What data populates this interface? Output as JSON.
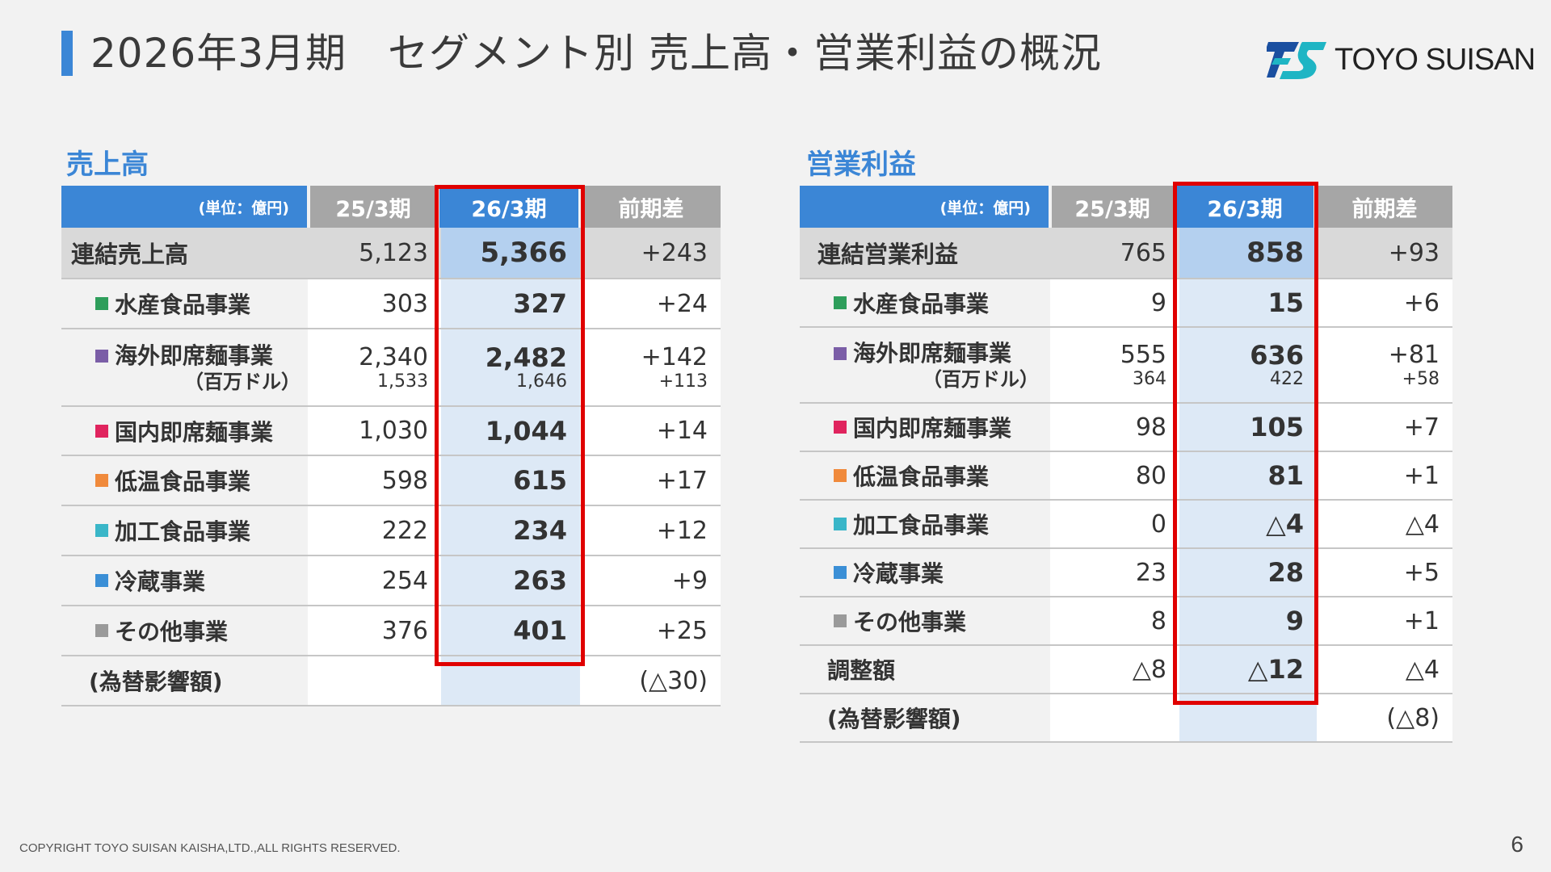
{
  "header": {
    "title": "2026年3月期　セグメント別 売上高・営業利益の概況",
    "logo_text": "TOYO SUISAN"
  },
  "colors": {
    "accent": "#3b86d6",
    "highlight_border": "#e00000",
    "suisan": "#2e9e5b",
    "kaigai": "#7b5ea7",
    "kokunai": "#e0245e",
    "teion": "#f08a3c",
    "kakou": "#3ab6c8",
    "reizou": "#3b8fd6",
    "other": "#9a9a9a"
  },
  "sales": {
    "section_title": "売上高",
    "headers": [
      "(単位：億円)",
      "25/3期",
      "26/3期",
      "前期差"
    ],
    "total": {
      "label": "連結売上高",
      "prev": "5,123",
      "curr": "5,366",
      "diff": "+243"
    },
    "rows": [
      {
        "label": "水産食品事業",
        "color": "#2e9e5b",
        "prev": "303",
        "curr": "327",
        "diff": "+24"
      },
      {
        "label": "海外即席麺事業",
        "unit": "（百万ドル）",
        "color": "#7b5ea7",
        "prev": "2,340",
        "prev_sub": "1,533",
        "curr": "2,482",
        "curr_sub": "1,646",
        "diff": "+142",
        "diff_sub": "+113"
      },
      {
        "label": "国内即席麺事業",
        "color": "#e0245e",
        "prev": "1,030",
        "curr": "1,044",
        "diff": "+14"
      },
      {
        "label": "低温食品事業",
        "color": "#f08a3c",
        "prev": "598",
        "curr": "615",
        "diff": "+17"
      },
      {
        "label": "加工食品事業",
        "color": "#3ab6c8",
        "prev": "222",
        "curr": "234",
        "diff": "+12"
      },
      {
        "label": "冷蔵事業",
        "color": "#3b8fd6",
        "prev": "254",
        "curr": "263",
        "diff": "+9"
      },
      {
        "label": "その他事業",
        "color": "#9a9a9a",
        "prev": "376",
        "curr": "401",
        "diff": "+25"
      }
    ],
    "fx": {
      "label": "(為替影響額)",
      "diff": "(△30)"
    }
  },
  "op": {
    "section_title": "営業利益",
    "headers": [
      "(単位：億円)",
      "25/3期",
      "26/3期",
      "前期差"
    ],
    "total": {
      "label": "連結営業利益",
      "prev": "765",
      "curr": "858",
      "diff": "+93"
    },
    "rows": [
      {
        "label": "水産食品事業",
        "color": "#2e9e5b",
        "prev": "9",
        "curr": "15",
        "diff": "+6"
      },
      {
        "label": "海外即席麺事業",
        "unit": "（百万ドル）",
        "color": "#7b5ea7",
        "prev": "555",
        "prev_sub": "364",
        "curr": "636",
        "curr_sub": "422",
        "diff": "+81",
        "diff_sub": "+58"
      },
      {
        "label": "国内即席麺事業",
        "color": "#e0245e",
        "prev": "98",
        "curr": "105",
        "diff": "+7"
      },
      {
        "label": "低温食品事業",
        "color": "#f08a3c",
        "prev": "80",
        "curr": "81",
        "diff": "+1"
      },
      {
        "label": "加工食品事業",
        "color": "#3ab6c8",
        "prev": "0",
        "curr": "△4",
        "diff": "△4"
      },
      {
        "label": "冷蔵事業",
        "color": "#3b8fd6",
        "prev": "23",
        "curr": "28",
        "diff": "+5"
      },
      {
        "label": "その他事業",
        "color": "#9a9a9a",
        "prev": "8",
        "curr": "9",
        "diff": "+1"
      }
    ],
    "adjust": {
      "label": "調整額",
      "prev": "△8",
      "curr": "△12",
      "diff": "△4"
    },
    "fx": {
      "label": "(為替影響額)",
      "diff": "(△8)"
    }
  },
  "footer": {
    "copyright": "COPYRIGHT TOYO SUISAN KAISHA,LTD.,ALL RIGHTS RESERVED.",
    "page_number": "6"
  }
}
